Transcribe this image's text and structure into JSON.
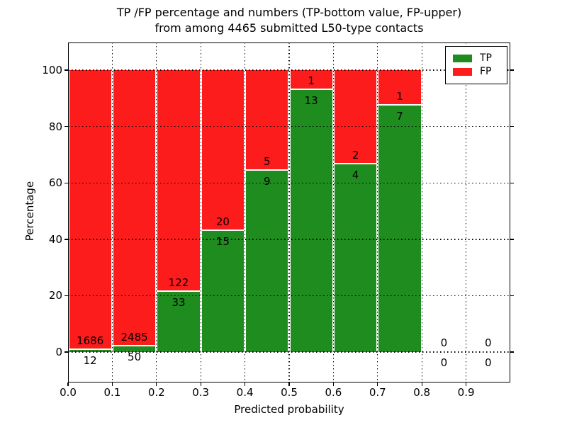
{
  "figure": {
    "title_line1": "TP /FP percentage and numbers (TP-bottom value, FP-upper)",
    "title_line2": "from among 4465 submitted L50-type contacts"
  },
  "chart_data": {
    "type": "bar",
    "stacked": true,
    "normalized": "each bin scaled to 100%, green = TP share, red = FP share",
    "title": "TP /FP percentage and numbers (TP-bottom value, FP-upper)\nfrom among 4465 submitted L50-type contacts",
    "xlabel": "Predicted probability",
    "ylabel": "Percentage",
    "total_submitted": 4465,
    "bin_start": [
      0.0,
      0.1,
      0.2,
      0.3,
      0.4,
      0.5,
      0.6,
      0.7,
      0.8,
      0.9
    ],
    "bin_width": 0.1,
    "series": [
      {
        "name": "TP",
        "color": "#1e8c1e",
        "values": [
          12,
          50,
          33,
          15,
          9,
          13,
          4,
          7,
          0,
          0
        ]
      },
      {
        "name": "FP",
        "color": "#fc1c1c",
        "values": [
          1686,
          2485,
          122,
          20,
          5,
          1,
          2,
          1,
          0,
          0
        ]
      }
    ],
    "tp_percent_by_bin": [
      0.71,
      1.97,
      21.29,
      42.86,
      64.29,
      92.86,
      66.67,
      87.5,
      0,
      0
    ],
    "x_ticks": [
      "0.0",
      "0.1",
      "0.2",
      "0.3",
      "0.4",
      "0.5",
      "0.6",
      "0.7",
      "0.8",
      "0.9"
    ],
    "x_tick_values": [
      0.0,
      0.1,
      0.2,
      0.3,
      0.4,
      0.5,
      0.6,
      0.7,
      0.8,
      0.9
    ],
    "y_ticks": [
      "0",
      "20",
      "40",
      "60",
      "80",
      "100"
    ],
    "y_tick_values": [
      0,
      20,
      40,
      60,
      80,
      100
    ],
    "xlim": [
      0.0,
      1.0
    ],
    "ylim": [
      -10.8,
      109.8
    ],
    "grid": "dotted black, horizontal and vertical",
    "legend": {
      "position": "upper right",
      "items": [
        {
          "label": "TP",
          "color": "#1e8c1e"
        },
        {
          "label": "FP",
          "color": "#fc1c1c"
        }
      ]
    }
  }
}
